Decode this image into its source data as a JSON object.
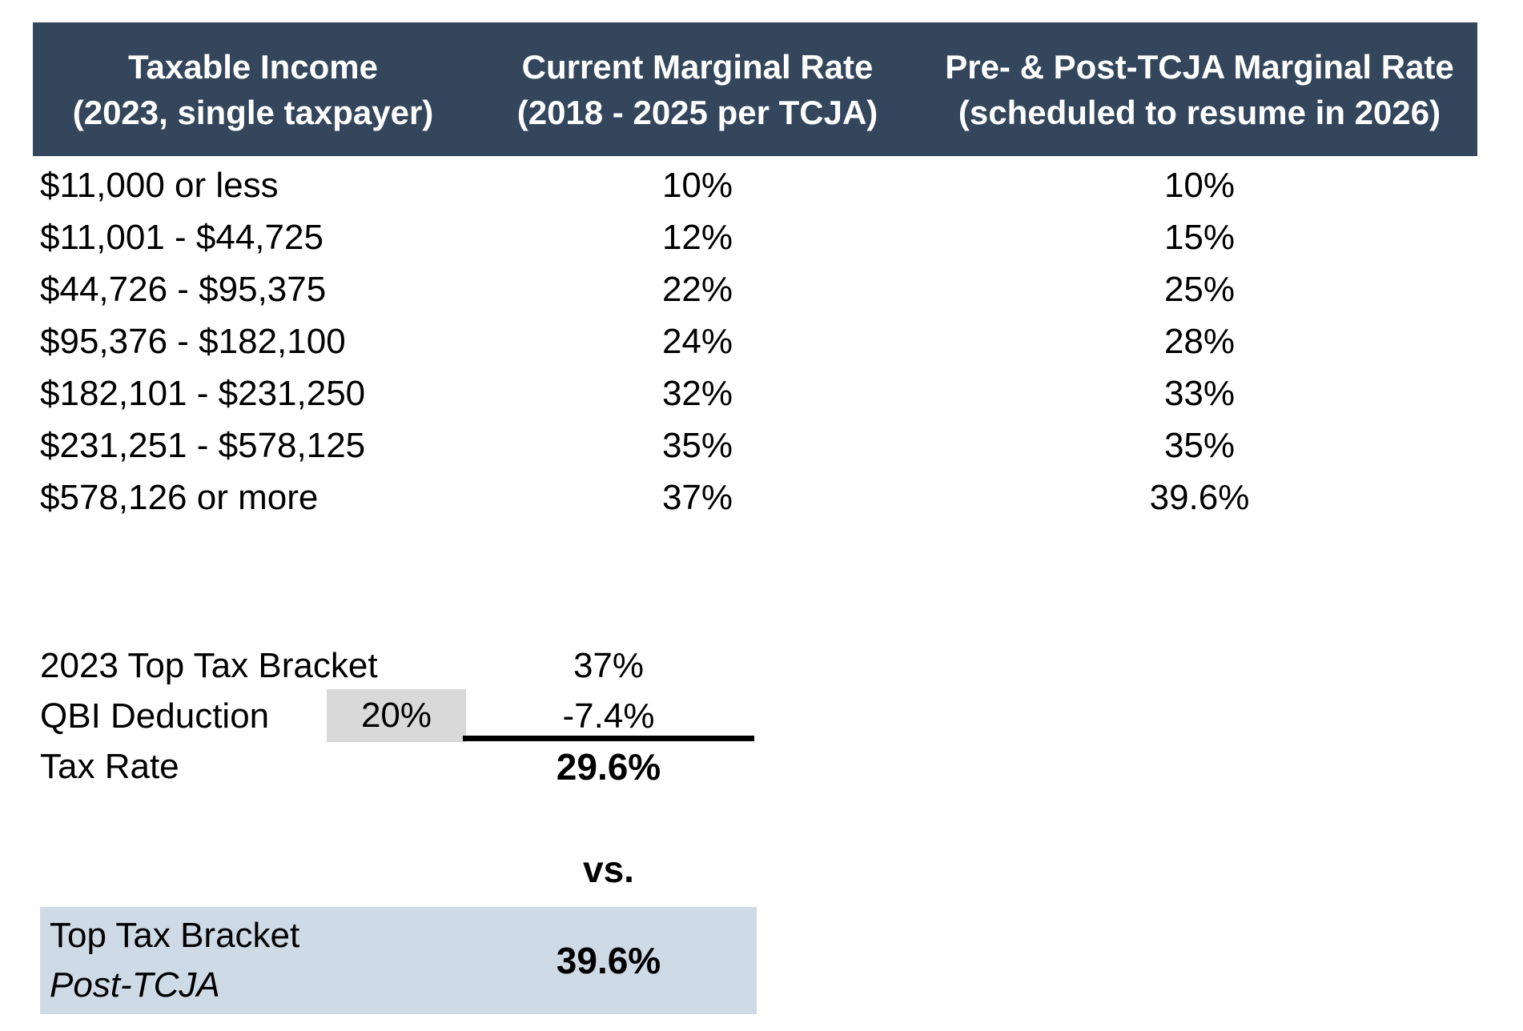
{
  "colors": {
    "header_bg": "#34465C",
    "header_text": "#FFFFFF",
    "qbi_badge_bg": "#D9D9D9",
    "result_box_bg": "#CEDAE6",
    "body_text": "#000000"
  },
  "tax_table": {
    "header": {
      "columns": [
        {
          "line1": "Taxable Income",
          "line2": "(2023, single taxpayer)"
        },
        {
          "line1": "Current Marginal Rate",
          "line2": "(2018 - 2025 per TCJA)"
        },
        {
          "line1": "Pre- & Post-TCJA Marginal Rate",
          "line2": "(scheduled to resume in 2026)"
        }
      ]
    },
    "rows": [
      {
        "income": "$11,000 or less",
        "current": "10%",
        "pre_post": "10%"
      },
      {
        "income": "$11,001 - $44,725",
        "current": "12%",
        "pre_post": "15%"
      },
      {
        "income": "$44,726 - $95,375",
        "current": "22%",
        "pre_post": "25%"
      },
      {
        "income": "$95,376 - $182,100",
        "current": "24%",
        "pre_post": "28%"
      },
      {
        "income": "$182,101 - $231,250",
        "current": "32%",
        "pre_post": "33%"
      },
      {
        "income": "$231,251 - $578,125",
        "current": "35%",
        "pre_post": "35%"
      },
      {
        "income": "$578,126 or more",
        "current": "37%",
        "pre_post": "39.6%"
      }
    ]
  },
  "calculation": {
    "top_bracket": {
      "label": "2023 Top Tax Bracket",
      "value": "37%"
    },
    "qbi": {
      "label": "QBI Deduction",
      "pct": "20%",
      "value": "-7.4%"
    },
    "tax_rate": {
      "label": "Tax Rate",
      "value": "29.6%"
    },
    "vs": "vs.",
    "post_tcja": {
      "label_line1": "Top Tax Bracket",
      "label_line2": "Post-TCJA",
      "value": "39.6%"
    }
  }
}
